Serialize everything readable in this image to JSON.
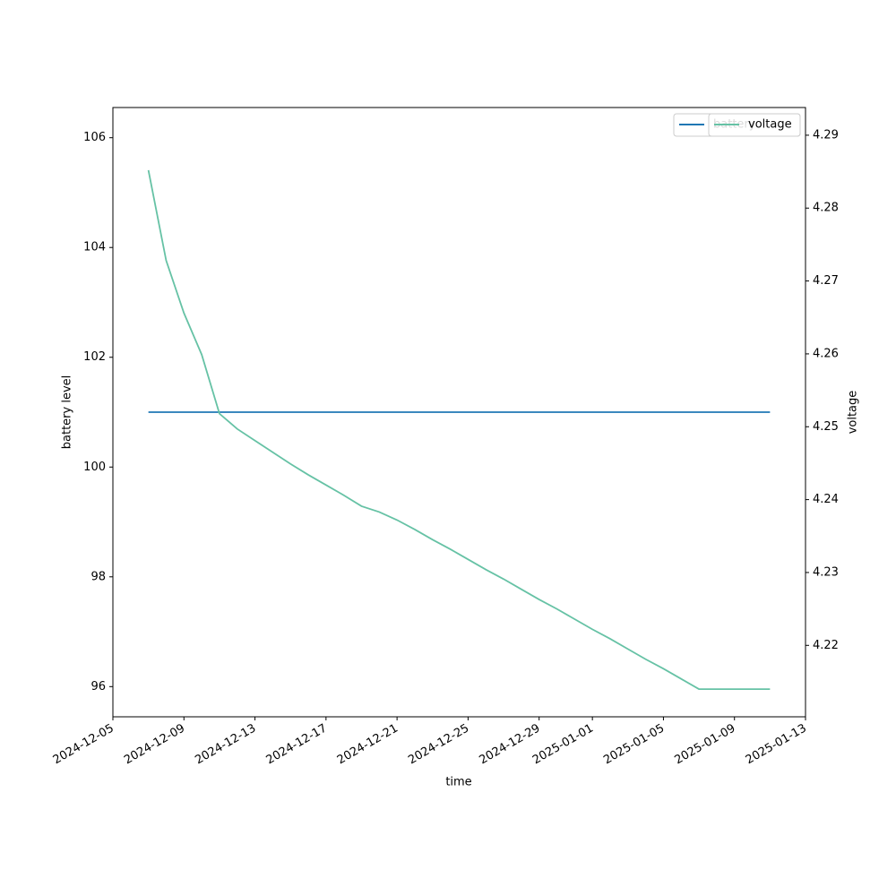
{
  "chart_data": {
    "type": "line",
    "x_label": "time",
    "y_label": "battery level",
    "y2_label": "voltage",
    "x": [
      "2024-12-07",
      "2024-12-08",
      "2024-12-09",
      "2024-12-10",
      "2024-12-11",
      "2024-12-12",
      "2024-12-13",
      "2024-12-14",
      "2024-12-15",
      "2024-12-16",
      "2024-12-17",
      "2024-12-18",
      "2024-12-19",
      "2024-12-20",
      "2024-12-21",
      "2024-12-22",
      "2024-12-23",
      "2024-12-24",
      "2024-12-25",
      "2024-12-26",
      "2024-12-27",
      "2024-12-28",
      "2024-12-29",
      "2024-12-30",
      "2024-12-31",
      "2025-01-01",
      "2025-01-02",
      "2025-01-03",
      "2025-01-04",
      "2025-01-05",
      "2025-01-06",
      "2025-01-07",
      "2025-01-08",
      "2025-01-09",
      "2025-01-10",
      "2025-01-11"
    ],
    "series": [
      {
        "name": "battery",
        "color": "#1f77b4",
        "values": [
          101,
          101,
          101,
          101,
          101,
          101,
          101,
          101,
          101,
          101,
          101,
          101,
          101,
          101,
          101,
          101,
          101,
          101,
          101,
          101,
          101,
          101,
          101,
          101,
          101,
          101,
          101,
          101,
          101,
          101,
          101,
          101,
          101,
          101,
          101,
          101
        ]
      },
      {
        "name": "voltage",
        "color": "#66c2a5",
        "axis": "y2",
        "values": [
          4.2852,
          4.2728,
          4.2656,
          4.2599,
          4.2518,
          4.2497,
          4.2481,
          4.2465,
          4.2449,
          4.2434,
          4.242,
          4.2406,
          4.2391,
          4.2383,
          4.2372,
          4.2359,
          4.2345,
          4.2332,
          4.2318,
          4.2304,
          4.2291,
          4.2277,
          4.2263,
          4.225,
          4.2236,
          4.2222,
          4.2209,
          4.2195,
          4.2181,
          4.2168,
          4.2154,
          4.214,
          4.214,
          4.214,
          4.214,
          4.214
        ]
      }
    ],
    "xlim": [
      "2024-12-05",
      "2025-01-13"
    ],
    "xticks": [
      "2024-12-05",
      "2024-12-09",
      "2024-12-13",
      "2024-12-17",
      "2024-12-21",
      "2024-12-25",
      "2024-12-29",
      "2025-01-01",
      "2025-01-05",
      "2025-01-09",
      "2025-01-13"
    ],
    "ylim": [
      95.45,
      106.55
    ],
    "yticks": [
      96,
      98,
      100,
      102,
      104,
      106
    ],
    "y2lim": [
      4.2102,
      4.2938
    ],
    "y2ticks": [
      4.22,
      4.23,
      4.24,
      4.25,
      4.26,
      4.27,
      4.28,
      4.29
    ],
    "legend": "upper right",
    "grid": false
  }
}
